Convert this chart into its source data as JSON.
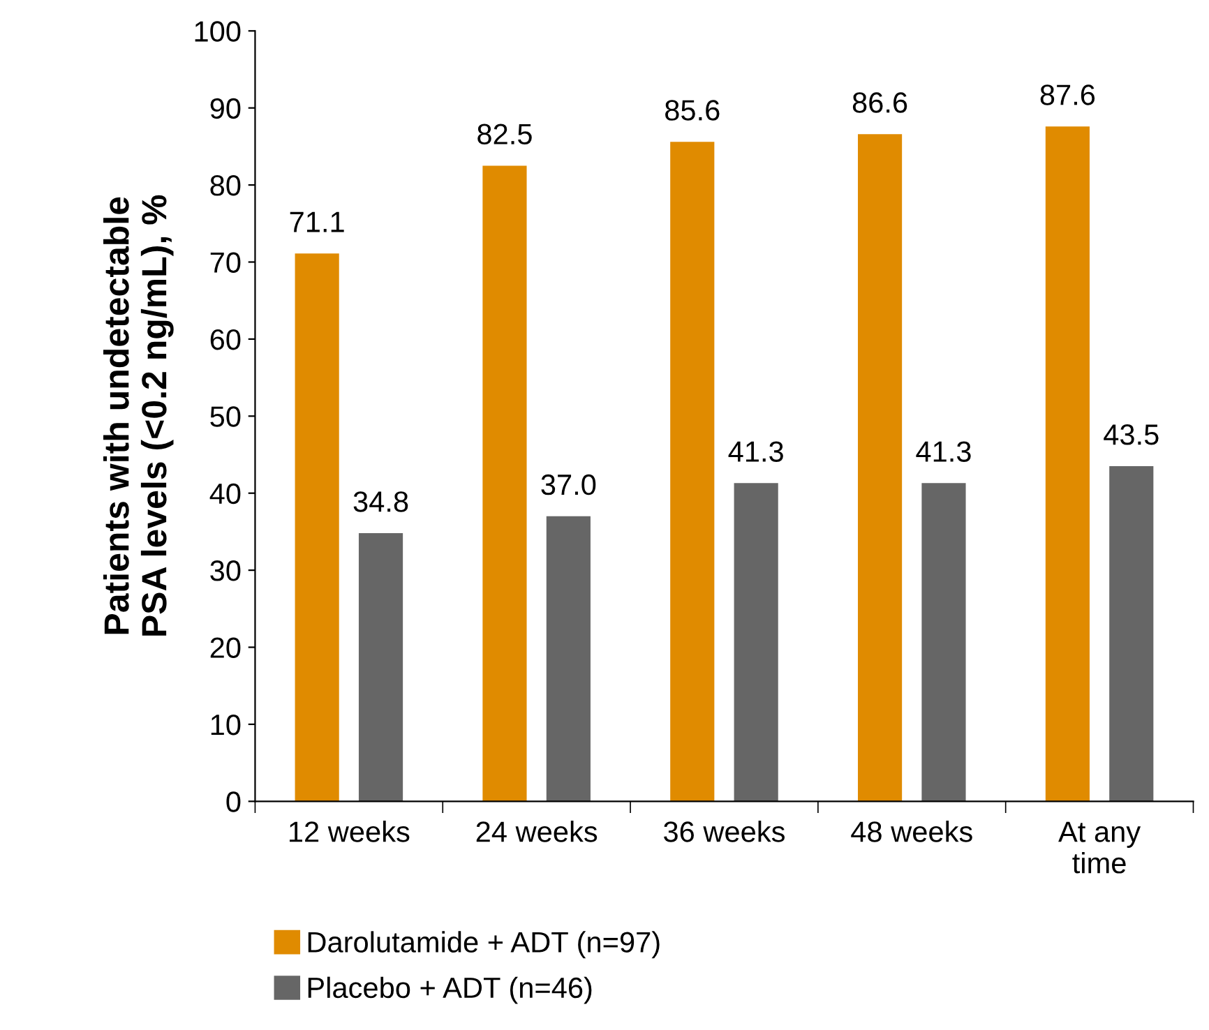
{
  "chart_data": {
    "type": "bar",
    "ylabel": "Patients with undetectable\nPSA levels (<0.2 ng/mL), %",
    "categories": [
      "12 weeks",
      "24 weeks",
      "36 weeks",
      "48 weeks",
      "At any\ntime"
    ],
    "series": [
      {
        "name": "Darolutamide + ADT (n=97)",
        "color": "#e08b00",
        "values": [
          71.1,
          82.5,
          85.6,
          86.6,
          87.6
        ],
        "value_labels": [
          "71.1",
          "82.5",
          "85.6",
          "86.6",
          "87.6"
        ]
      },
      {
        "name": "Placebo + ADT (n=46)",
        "color": "#666666",
        "values": [
          34.8,
          37.0,
          41.3,
          41.3,
          43.5
        ],
        "value_labels": [
          "34.8",
          "37.0",
          "41.3",
          "41.3",
          "43.5"
        ]
      }
    ],
    "ylim": [
      0,
      100
    ],
    "yticks": [
      0,
      10,
      20,
      30,
      40,
      50,
      60,
      70,
      80,
      90,
      100
    ],
    "grid": false,
    "legend": "bottom"
  }
}
